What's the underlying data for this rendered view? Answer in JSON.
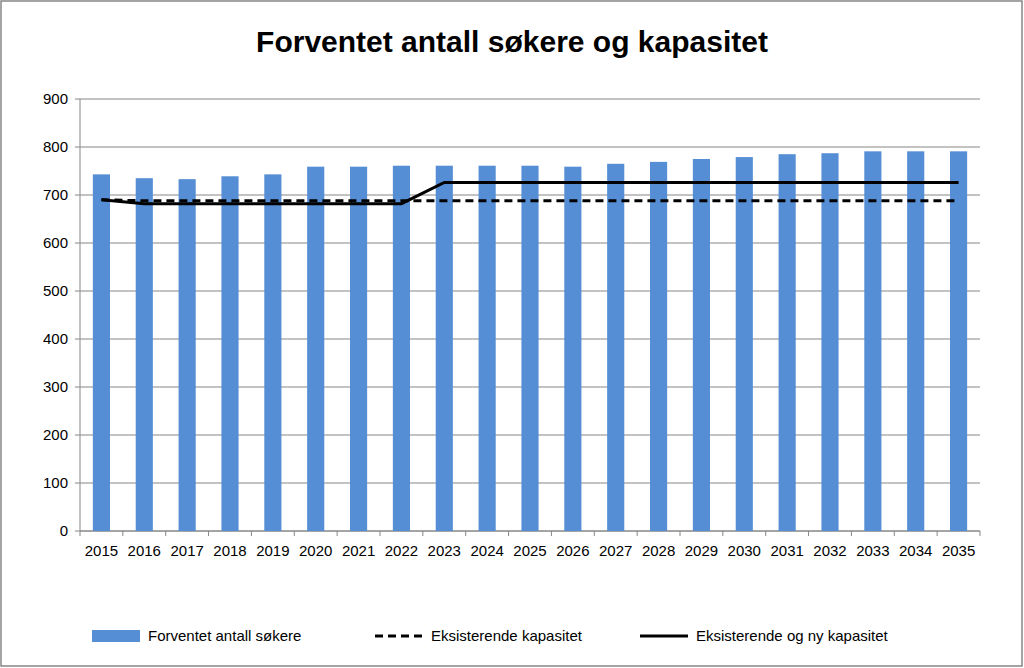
{
  "chart_data": {
    "type": "bar",
    "title": "Forventet antall søkere og kapasitet",
    "categories": [
      "2015",
      "2016",
      "2017",
      "2018",
      "2019",
      "2020",
      "2021",
      "2022",
      "2023",
      "2024",
      "2025",
      "2026",
      "2027",
      "2028",
      "2029",
      "2030",
      "2031",
      "2032",
      "2033",
      "2034",
      "2035"
    ],
    "series": [
      {
        "name": "Forventet antall søkere",
        "type": "bar",
        "color": "#558ed5",
        "values": [
          743,
          735,
          733,
          739,
          743,
          759,
          759,
          761,
          761,
          761,
          761,
          759,
          765,
          769,
          775,
          779,
          785,
          787,
          791,
          791,
          791
        ]
      },
      {
        "name": "Eksisterende kapasitet",
        "type": "line",
        "color": "#000000",
        "line_style": "dashed",
        "values": [
          690,
          688,
          688,
          688,
          688,
          688,
          688,
          688,
          688,
          688,
          688,
          688,
          688,
          688,
          688,
          688,
          688,
          688,
          688,
          688,
          688
        ]
      },
      {
        "name": "Eksisterende og ny kapasitet",
        "type": "line",
        "color": "#000000",
        "line_style": "solid",
        "values": [
          690,
          682,
          682,
          682,
          682,
          682,
          682,
          682,
          726,
          726,
          726,
          726,
          726,
          726,
          726,
          726,
          726,
          726,
          726,
          726,
          726
        ]
      }
    ],
    "ylim": [
      0,
      900
    ],
    "yticks": [
      0,
      100,
      200,
      300,
      400,
      500,
      600,
      700,
      800,
      900
    ],
    "grid": true,
    "legend": "bottom"
  }
}
